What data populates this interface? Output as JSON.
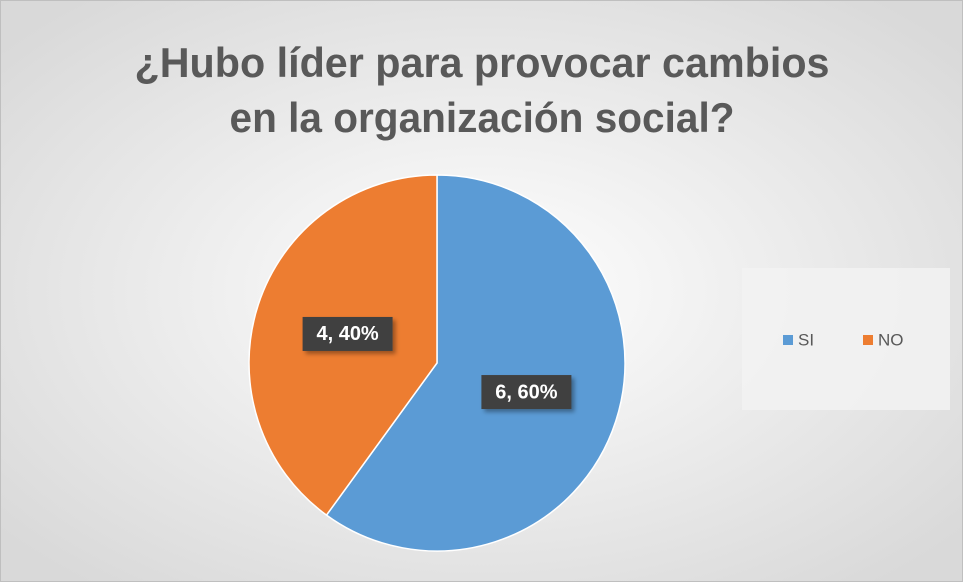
{
  "chart_data": {
    "type": "pie",
    "title": [
      "¿Hubo líder para provocar cambios",
      "en la organización social?"
    ],
    "categories": [
      "SI",
      "NO"
    ],
    "values": [
      6,
      4
    ],
    "value_labels": [
      "6, 60%",
      "4, 40%"
    ],
    "colors": [
      "#5b9bd5",
      "#ed7d31"
    ],
    "legend": "right"
  }
}
